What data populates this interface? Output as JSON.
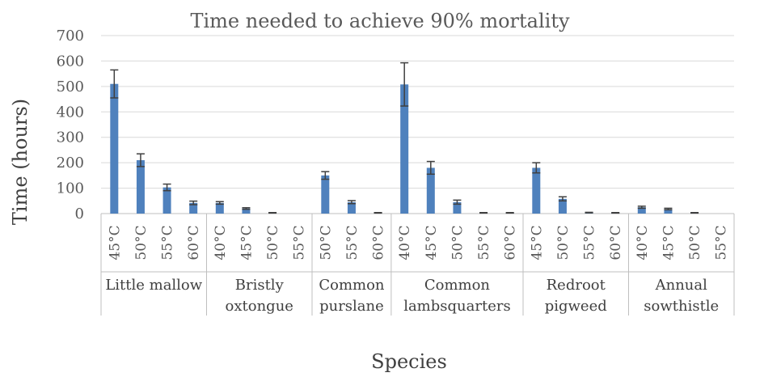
{
  "chart_data": {
    "type": "bar",
    "title": "Time needed to achieve 90% mortality",
    "xlabel": "Species",
    "ylabel": "Time (hours)",
    "ylim": [
      0,
      700
    ],
    "yticks": [
      0,
      100,
      200,
      300,
      400,
      500,
      600,
      700
    ],
    "grid": true,
    "bar_color": "#4f81bd",
    "groups": [
      {
        "name": "Little mallow",
        "lines": [
          "Little mallow"
        ],
        "bars": [
          {
            "temp": "45°C",
            "value": 510,
            "error": 55
          },
          {
            "temp": "50°C",
            "value": 210,
            "error": 25
          },
          {
            "temp": "55°C",
            "value": 103,
            "error": 13
          },
          {
            "temp": "60°C",
            "value": 42,
            "error": 7
          }
        ]
      },
      {
        "name": "Bristly oxtongue",
        "lines": [
          "Bristly",
          "oxtongue"
        ],
        "bars": [
          {
            "temp": "40°C",
            "value": 42,
            "error": 5
          },
          {
            "temp": "45°C",
            "value": 20,
            "error": 3
          },
          {
            "temp": "50°C",
            "value": 3,
            "error": 1
          },
          {
            "temp": "55°C",
            "value": 0,
            "error": 0
          }
        ]
      },
      {
        "name": "Common purslane",
        "lines": [
          "Common",
          "purslane"
        ],
        "bars": [
          {
            "temp": "50°C",
            "value": 150,
            "error": 15
          },
          {
            "temp": "55°C",
            "value": 45,
            "error": 6
          },
          {
            "temp": "60°C",
            "value": 3,
            "error": 1
          }
        ]
      },
      {
        "name": "Common lambsquarters",
        "lines": [
          "Common",
          "lambsquarters"
        ],
        "bars": [
          {
            "temp": "40°C",
            "value": 508,
            "error": 85
          },
          {
            "temp": "45°C",
            "value": 180,
            "error": 25
          },
          {
            "temp": "50°C",
            "value": 45,
            "error": 8
          },
          {
            "temp": "55°C",
            "value": 3,
            "error": 1
          },
          {
            "temp": "60°C",
            "value": 3,
            "error": 1
          }
        ]
      },
      {
        "name": "Redroot pigweed",
        "lines": [
          "Redroot",
          "pigweed"
        ],
        "bars": [
          {
            "temp": "45°C",
            "value": 180,
            "error": 20
          },
          {
            "temp": "50°C",
            "value": 58,
            "error": 8
          },
          {
            "temp": "55°C",
            "value": 4,
            "error": 1
          },
          {
            "temp": "60°C",
            "value": 3,
            "error": 1
          }
        ]
      },
      {
        "name": "Annual sowthistle",
        "lines": [
          "Annual",
          "sowthistle"
        ],
        "bars": [
          {
            "temp": "40°C",
            "value": 25,
            "error": 4
          },
          {
            "temp": "45°C",
            "value": 18,
            "error": 3
          },
          {
            "temp": "50°C",
            "value": 3,
            "error": 1
          },
          {
            "temp": "55°C",
            "value": 0,
            "error": 0
          }
        ]
      }
    ]
  }
}
